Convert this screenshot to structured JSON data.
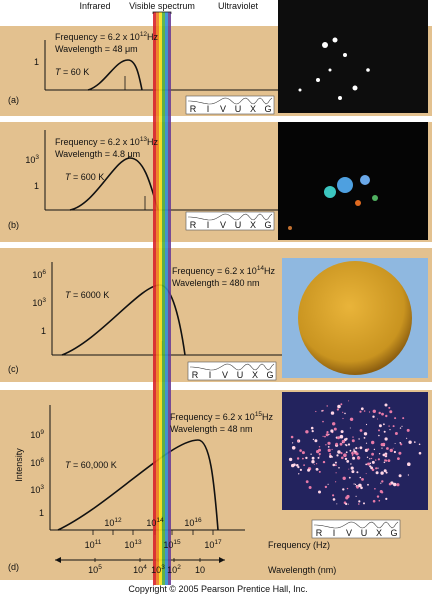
{
  "header": {
    "labels": [
      "Infrared",
      "Visible spectrum",
      "Ultraviolet"
    ]
  },
  "spectrum_letters": [
    "R",
    "I",
    "V",
    "U",
    "X",
    "G"
  ],
  "panels": [
    {
      "label": "(a)",
      "temperature_symbol": "T",
      "temperature": " = 60 K",
      "frequency": {
        "text": "Frequency = 6.2 x 10",
        "exponent": "12",
        "unit": "Hz"
      },
      "wavelength": "Wavelength = 48 μm",
      "y_ticks": [
        "1"
      ]
    },
    {
      "label": "(b)",
      "temperature_symbol": "T",
      "temperature": " = 600 K",
      "frequency": {
        "text": "Frequency = 6.2 x 10",
        "exponent": "13",
        "unit": "Hz"
      },
      "wavelength": "Wavelength = 4.8 μm",
      "y_ticks": [
        {
          "base": "10",
          "exponent": "3"
        },
        "1"
      ]
    },
    {
      "label": "(c)",
      "temperature_symbol": "T",
      "temperature": " = 6000 K",
      "frequency": {
        "text": "Frequency = 6.2 x 10",
        "exponent": "14",
        "unit": "Hz"
      },
      "wavelength": "Wavelength = 480 nm",
      "y_ticks": [
        {
          "base": "10",
          "exponent": "6"
        },
        {
          "base": "10",
          "exponent": "3"
        },
        "1"
      ]
    },
    {
      "label": "(d)",
      "temperature_symbol": "T",
      "temperature": " = 60,000 K",
      "frequency": {
        "text": "Frequency = 6.2 x 10",
        "exponent": "15",
        "unit": "Hz"
      },
      "wavelength": "Wavelength = 48 nm",
      "y_ticks": [
        {
          "base": "10",
          "exponent": "9"
        },
        {
          "base": "10",
          "exponent": "6"
        },
        {
          "base": "10",
          "exponent": "3"
        },
        "1"
      ],
      "y_axis_title": "Intensity",
      "frequency_ticks": [
        {
          "base": "10",
          "exponent": "11"
        },
        {
          "base": "10",
          "exponent": "12"
        },
        {
          "base": "10",
          "exponent": "13"
        },
        {
          "base": "10",
          "exponent": "14"
        },
        {
          "base": "10",
          "exponent": "15"
        },
        {
          "base": "10",
          "exponent": "16"
        },
        {
          "base": "10",
          "exponent": "17"
        }
      ],
      "frequency_axis_title": "Frequency (Hz)",
      "wavelength_ticks": [
        {
          "base": "10",
          "exponent": "5"
        },
        {
          "base": "10",
          "exponent": "4"
        },
        {
          "base": "10",
          "exponent": "3"
        },
        {
          "base": "10",
          "exponent": "2"
        },
        "10"
      ],
      "wavelength_axis_title": "Wavelength (nm)"
    }
  ],
  "footer": "Copyright © 2005 Pearson Prentice Hall, Inc."
}
